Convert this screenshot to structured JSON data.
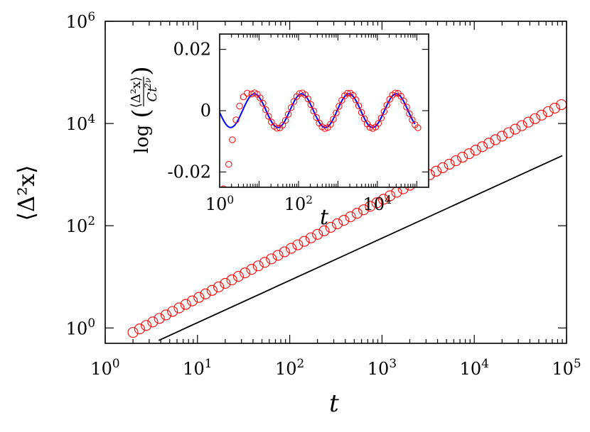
{
  "chart_data": [
    {
      "id": "main",
      "type": "scatter",
      "title": "",
      "xlabel": "t",
      "ylabel": "⟨Δ²x⟩",
      "xscale": "log",
      "yscale": "log",
      "xlim": [
        1,
        100000
      ],
      "ylim": [
        0.5,
        1000000
      ],
      "x_ticks": [
        {
          "value": 1,
          "base": "10",
          "exp": "0"
        },
        {
          "value": 10,
          "base": "10",
          "exp": "1"
        },
        {
          "value": 100,
          "base": "10",
          "exp": "2"
        },
        {
          "value": 1000,
          "base": "10",
          "exp": "3"
        },
        {
          "value": 10000,
          "base": "10",
          "exp": "4"
        },
        {
          "value": 100000,
          "base": "10",
          "exp": "5"
        }
      ],
      "y_ticks": [
        {
          "value": 1,
          "base": "10",
          "exp": "0"
        },
        {
          "value": 100,
          "base": "10",
          "exp": "2"
        },
        {
          "value": 10000,
          "base": "10",
          "exp": "4"
        },
        {
          "value": 1000000,
          "base": "10",
          "exp": "6"
        }
      ],
      "series": [
        {
          "name": "simulation ⟨Δ²x⟩",
          "marker": "open-circle",
          "color": "#ff0000",
          "x_start": 2,
          "x_end": 90000,
          "points_per_decade": 14,
          "y_at_x_1": 0.42,
          "exponent": 0.96
        },
        {
          "name": "power-law fit C t^{2ν}",
          "marker": "line",
          "color": "#000000",
          "x": [
            3.8,
            90000
          ],
          "y": [
            0.57,
            2350
          ]
        }
      ]
    },
    {
      "id": "inset",
      "type": "scatter",
      "xlabel": "t",
      "ylabel_prefix": "log",
      "ylabel_numerator": "⟨Δ²x⟩",
      "ylabel_denominator": "Ct",
      "ylabel_denominator_exp": "2ν",
      "xscale": "log",
      "xlim": [
        1,
        200000
      ],
      "ylim": [
        -0.025,
        0.025
      ],
      "x_ticks": [
        {
          "value": 1,
          "base": "10",
          "exp": "0"
        },
        {
          "value": 100,
          "base": "10",
          "exp": "2"
        },
        {
          "value": 10000,
          "base": "10",
          "exp": "4"
        }
      ],
      "y_ticks": [
        {
          "value": 0.02,
          "label": "0.02"
        },
        {
          "value": 0,
          "label": "0"
        },
        {
          "value": -0.02,
          "label": "-0.02"
        }
      ],
      "series": [
        {
          "name": "log-periodic fit",
          "marker": "line",
          "color": "#0000ff",
          "x_start": 1,
          "x_end": 90000,
          "amplitude": 0.0055,
          "period_decades": 1.2,
          "peak_log10_t": 0.88
        },
        {
          "name": "simulation residual",
          "marker": "open-circle",
          "color": "#ff0000",
          "x_start": 2,
          "x_end": 120000,
          "points_per_decade": 14,
          "amplitude": 0.0058,
          "period_decades": 1.2,
          "peak_log10_t": 0.88,
          "early_points": [
            {
              "x": 1.25,
              "y": -0.0255
            },
            {
              "x": 1.7,
              "y": -0.0175
            },
            {
              "x": 2.1,
              "y": -0.0095
            },
            {
              "x": 2.6,
              "y": -0.003
            },
            {
              "x": 3.2,
              "y": 0.0015
            },
            {
              "x": 4.0,
              "y": 0.0045
            },
            {
              "x": 5.0,
              "y": 0.0057
            }
          ]
        }
      ]
    }
  ]
}
